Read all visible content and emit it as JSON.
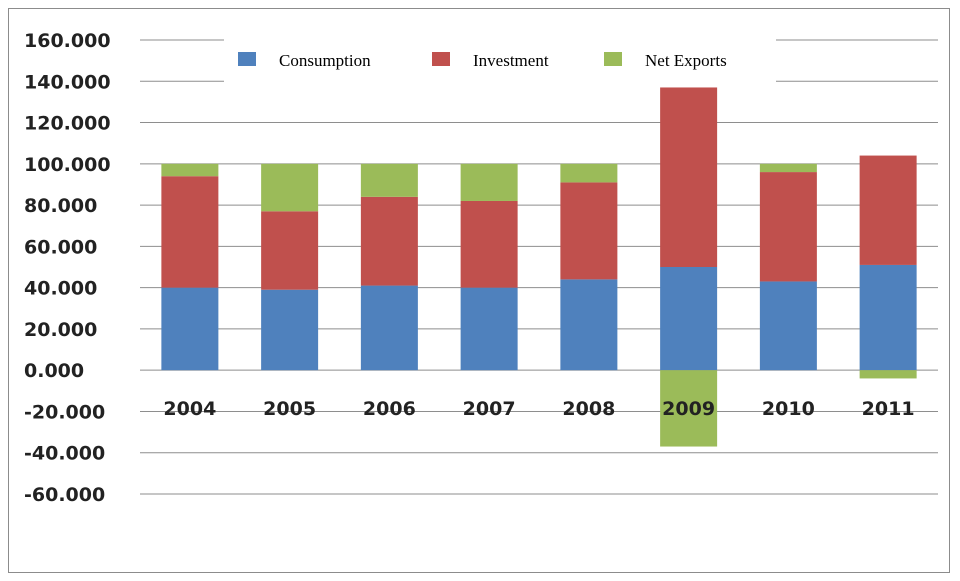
{
  "chart_data": {
    "type": "bar",
    "stacked": true,
    "title": "",
    "xlabel": "",
    "ylabel": "",
    "categories": [
      "2004",
      "2005",
      "2006",
      "2007",
      "2008",
      "2009",
      "2010",
      "2011"
    ],
    "series": [
      {
        "name": "Consumption",
        "color": "#4f81bd",
        "values": [
          40,
          39,
          41,
          40,
          44,
          50,
          43,
          51
        ]
      },
      {
        "name": "Investment",
        "color": "#c0504d",
        "values": [
          54,
          38,
          43,
          42,
          47,
          87,
          53,
          53
        ]
      },
      {
        "name": "Net Exports",
        "color": "#9bbb59",
        "values": [
          6,
          23,
          16,
          18,
          9,
          -37,
          4,
          -4
        ]
      }
    ],
    "ylim": [
      -60,
      160
    ],
    "yticks": [
      "160.000",
      "140.000",
      "120.000",
      "100.000",
      "80.000",
      "60.000",
      "40.000",
      "20.000",
      "0.000",
      "-20.000",
      "-40.000",
      "-60.000"
    ],
    "ytick_values": [
      160,
      140,
      120,
      100,
      80,
      60,
      40,
      20,
      0,
      -20,
      -40,
      -60
    ],
    "grid": true,
    "legend_position": "top"
  }
}
